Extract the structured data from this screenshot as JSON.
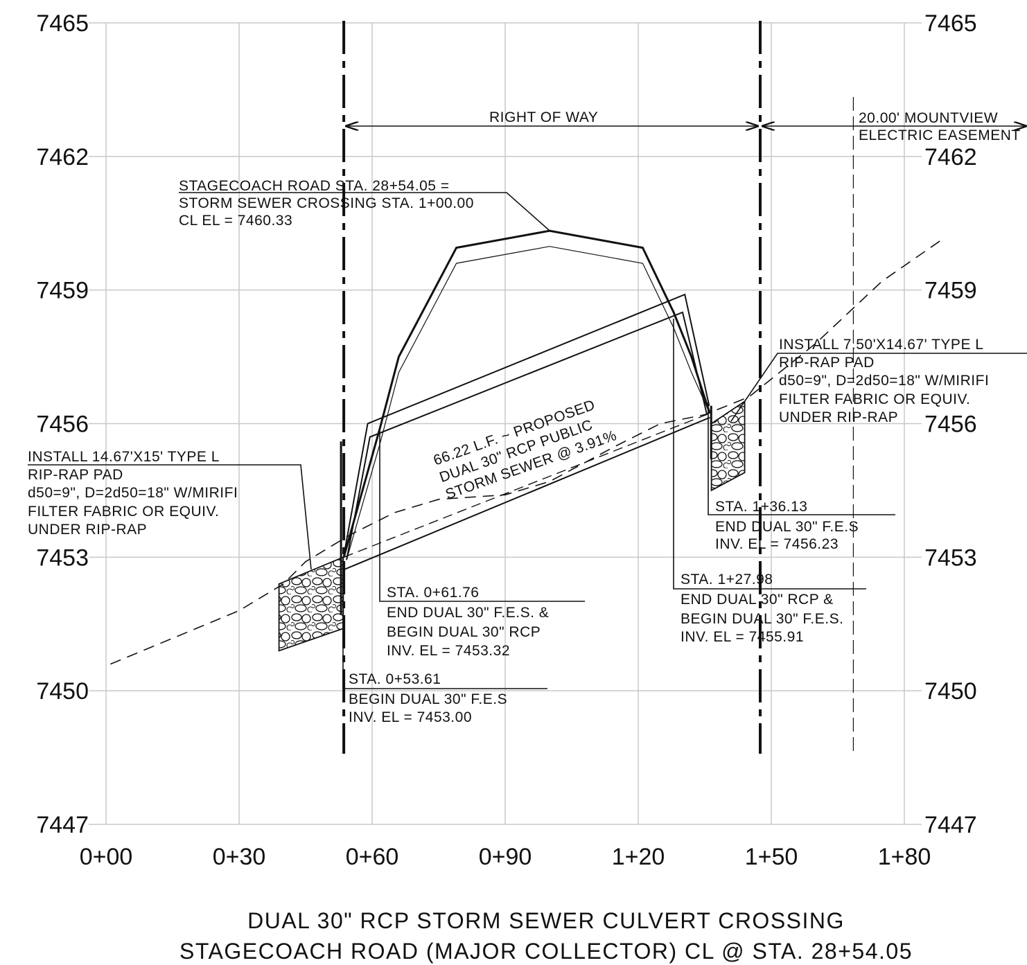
{
  "chart_data": {
    "type": "profile",
    "x_ticks": [
      "0+00",
      "0+30",
      "0+60",
      "0+90",
      "1+20",
      "1+50",
      "1+80"
    ],
    "x_tick_values": [
      0,
      30,
      60,
      90,
      120,
      150,
      180
    ],
    "xlim": [
      0,
      180
    ],
    "y_ticks": [
      "7465",
      "7462",
      "7459",
      "7456",
      "7453",
      "7450",
      "7447"
    ],
    "y_tick_values": [
      7465,
      7462,
      7459,
      7456,
      7453,
      7450,
      7447
    ],
    "ylim": [
      7447,
      7465
    ],
    "grid": true,
    "road_profile": {
      "x": [
        53.61,
        61.76,
        66,
        79,
        100,
        121,
        127.98,
        132,
        136.13
      ],
      "y": [
        7453.0,
        7455.9,
        7457.5,
        7459.95,
        7460.33,
        7459.95,
        7458.5,
        7457.5,
        7456.23
      ]
    },
    "existing_ground": {
      "x": [
        1,
        30,
        40,
        45,
        55,
        65,
        75,
        90,
        100,
        115,
        125,
        135,
        145,
        160,
        175,
        188
      ],
      "y": [
        7450.6,
        7451.8,
        7452.4,
        7452.9,
        7453.5,
        7454.0,
        7454.3,
        7454.4,
        7454.7,
        7455.5,
        7456.0,
        7456.2,
        7456.6,
        7457.8,
        7459.2,
        7460.1
      ]
    },
    "pipe": {
      "begin_fes_sta": 53.61,
      "begin_fes_inv": 7453.0,
      "begin_rcp_sta": 61.76,
      "begin_rcp_inv": 7453.32,
      "end_rcp_sta": 127.98,
      "end_rcp_inv": 7455.91,
      "end_fes_sta": 136.13,
      "end_fes_inv": 7456.23,
      "slope_pct": 3.91
    },
    "right_of_way": {
      "x_start": 53.61,
      "x_end": 147.5
    },
    "easement_line_x": 168.5,
    "riprap_pads": [
      {
        "x": [
          39,
          53.5,
          53.5,
          39
        ],
        "y": [
          7452.4,
          7453.0,
          7451.4,
          7450.9
        ]
      },
      {
        "x": [
          136.5,
          144,
          144,
          136.5
        ],
        "y": [
          7456.0,
          7456.5,
          7454.9,
          7454.5
        ]
      }
    ]
  },
  "annotations": {
    "right_of_way": "RIGHT OF WAY",
    "easement": [
      "20.00' MOUNTVIEW",
      "ELECTRIC EASEMENT"
    ],
    "crossing": [
      "STAGECOACH ROAD STA. 28+54.05 =",
      "STORM SEWER CROSSING STA. 1+00.00",
      "CL EL = 7460.33"
    ],
    "pipe_label": [
      "66.22 L.F. ~ PROPOSED",
      "DUAL 30\" RCP PUBLIC",
      "STORM SEWER @ 3.91%"
    ],
    "riprap_left": [
      "INSTALL 14.67'X15' TYPE L",
      "RIP-RAP PAD",
      "d50=9\", D=2d50=18\" W/MIRIFI",
      "FILTER FABRIC OR EQUIV.",
      "UNDER RIP-RAP"
    ],
    "riprap_right": [
      "INSTALL 7.50'X14.67' TYPE L",
      "RIP-RAP PAD",
      "d50=9\", D=2d50=18\" W/MIRIFI",
      "FILTER FABRIC OR EQUIV.",
      "UNDER RIP-RAP"
    ],
    "sta_136": [
      "STA. 1+36.13",
      "END DUAL 30\" F.E.S",
      "INV. EL = 7456.23"
    ],
    "sta_128": [
      "STA. 1+27.98",
      "END DUAL 30\" RCP &",
      "BEGIN DUAL 30\" F.E.S.",
      "INV. EL = 7455.91"
    ],
    "sta_062": [
      "STA. 0+61.76",
      "END DUAL 30\" F.E.S. &",
      "BEGIN DUAL 30\" RCP",
      "INV. EL = 7453.32"
    ],
    "sta_054": [
      "STA. 0+53.61",
      "BEGIN DUAL 30\" F.E.S",
      "INV. EL = 7453.00"
    ]
  },
  "title": [
    "DUAL 30\" RCP STORM SEWER CULVERT CROSSING",
    "STAGECOACH ROAD (MAJOR COLLECTOR) CL @ STA. 28+54.05"
  ]
}
